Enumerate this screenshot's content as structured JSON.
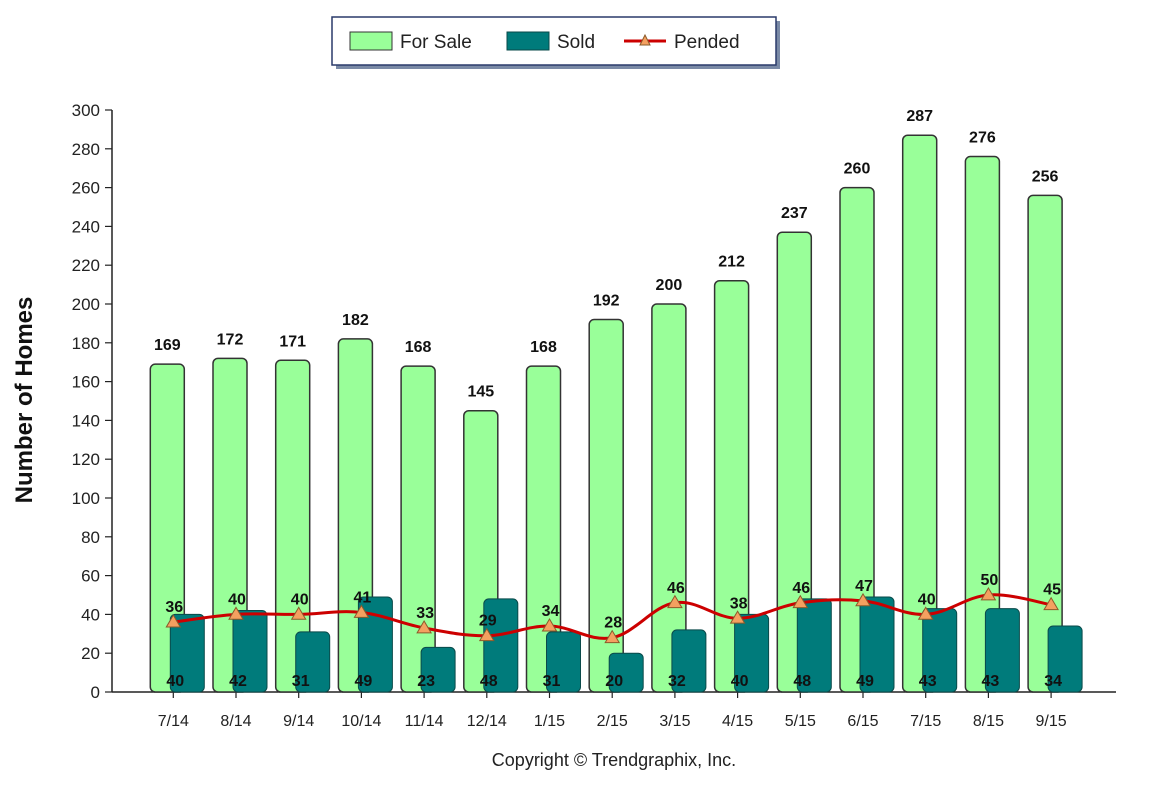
{
  "chart_data": {
    "type": "bar",
    "categories": [
      "7/14",
      "8/14",
      "9/14",
      "10/14",
      "11/14",
      "12/14",
      "1/15",
      "2/15",
      "3/15",
      "4/15",
      "5/15",
      "6/15",
      "7/15",
      "8/15",
      "9/15"
    ],
    "series": [
      {
        "name": "For Sale",
        "type": "bar",
        "color": "#99ff99",
        "values": [
          169,
          172,
          171,
          182,
          168,
          145,
          168,
          192,
          200,
          212,
          237,
          260,
          287,
          276,
          256
        ]
      },
      {
        "name": "Sold",
        "type": "bar",
        "color": "#007b7b",
        "values": [
          40,
          42,
          31,
          49,
          23,
          48,
          31,
          20,
          32,
          40,
          48,
          49,
          43,
          43,
          34
        ]
      },
      {
        "name": "Pended",
        "type": "line",
        "color": "#cc0000",
        "marker_color": "#f4a060",
        "values": [
          36,
          40,
          40,
          41,
          33,
          29,
          34,
          28,
          46,
          38,
          46,
          47,
          40,
          50,
          45
        ]
      }
    ],
    "ylabel": "Number of Homes",
    "ylim": [
      0,
      300
    ],
    "yticks": [
      0,
      20,
      40,
      60,
      80,
      100,
      120,
      140,
      160,
      180,
      200,
      220,
      240,
      260,
      280,
      300
    ],
    "grid": false,
    "legend": "top-center",
    "data_labels": true
  },
  "footer": {
    "copyright": "Copyright © Trendgraphix, Inc."
  }
}
